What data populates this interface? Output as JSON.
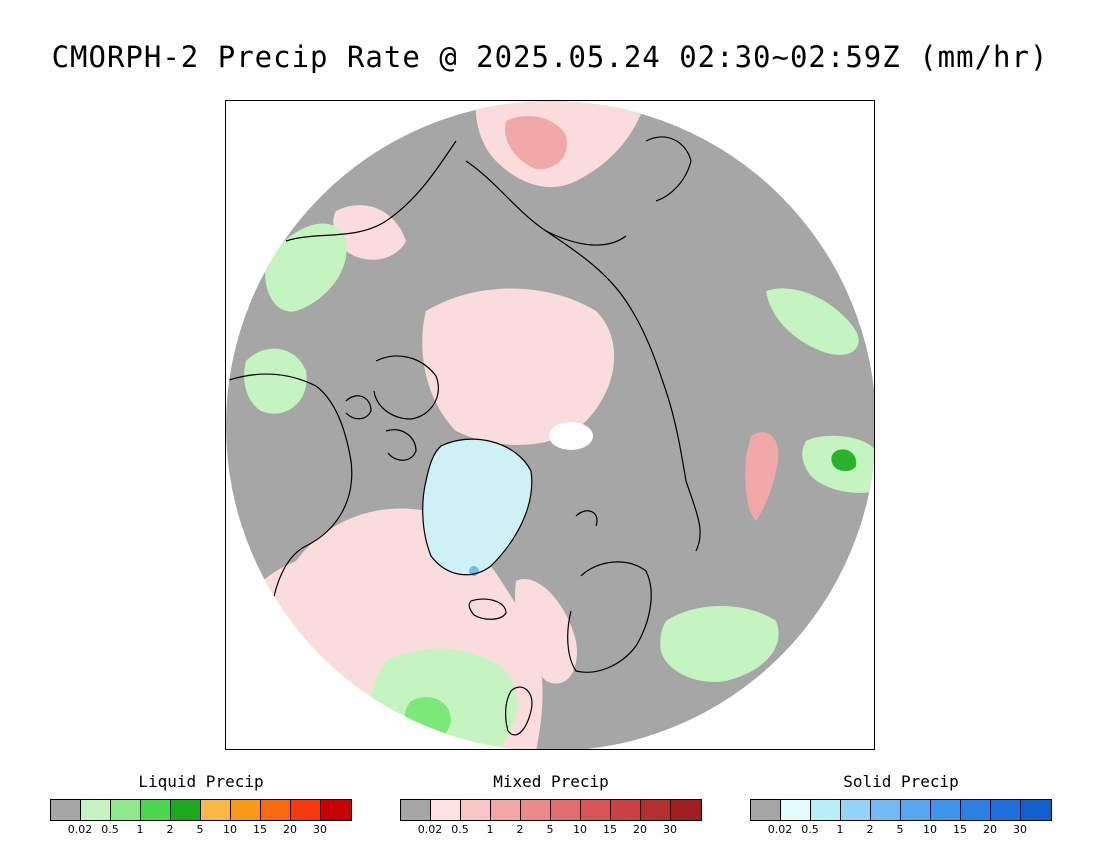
{
  "title": "CMORPH-2 Precip Rate @ 2025.05.24 02:30~02:59Z (mm/hr)",
  "colors": {
    "no_precip": "#a6a6a6",
    "liquid_light": "#c4f5c0",
    "liquid_mid": "#7de87a",
    "liquid_strong": "#28b428",
    "mixed_light": "#fadcdc",
    "mixed_mid": "#f0a8a8",
    "mixed_strong": "#e07878",
    "solid_light": "#cdf1f5",
    "solid_mid": "#66c0f0",
    "coast": "#000000"
  },
  "legends": [
    {
      "title": "Liquid Precip",
      "colors": [
        "#a6a6a6",
        "#c4f5c0",
        "#8fe88a",
        "#4cd84c",
        "#1ea81e",
        "#f8b84a",
        "#f89a18",
        "#f86a10",
        "#f43a0a",
        "#c80000"
      ],
      "ticks": [
        "0.02",
        "0.5",
        "1",
        "2",
        "5",
        "10",
        "15",
        "20",
        "30"
      ]
    },
    {
      "title": "Mixed Precip",
      "colors": [
        "#a6a6a6",
        "#fde2e2",
        "#f9c4c4",
        "#f2a6a6",
        "#ea8a8a",
        "#e06e6e",
        "#d65656",
        "#c84242",
        "#b23030",
        "#a02020"
      ],
      "ticks": [
        "0.02",
        "0.5",
        "1",
        "2",
        "5",
        "10",
        "15",
        "20",
        "30"
      ]
    },
    {
      "title": "Solid Precip",
      "colors": [
        "#a6a6a6",
        "#e4fcfc",
        "#b8eef8",
        "#94d2f8",
        "#76baf4",
        "#58a8f0",
        "#3e96ea",
        "#2c80e2",
        "#1e70da",
        "#1260cc"
      ],
      "ticks": [
        "0.02",
        "0.5",
        "1",
        "2",
        "5",
        "10",
        "15",
        "20",
        "30"
      ]
    }
  ]
}
